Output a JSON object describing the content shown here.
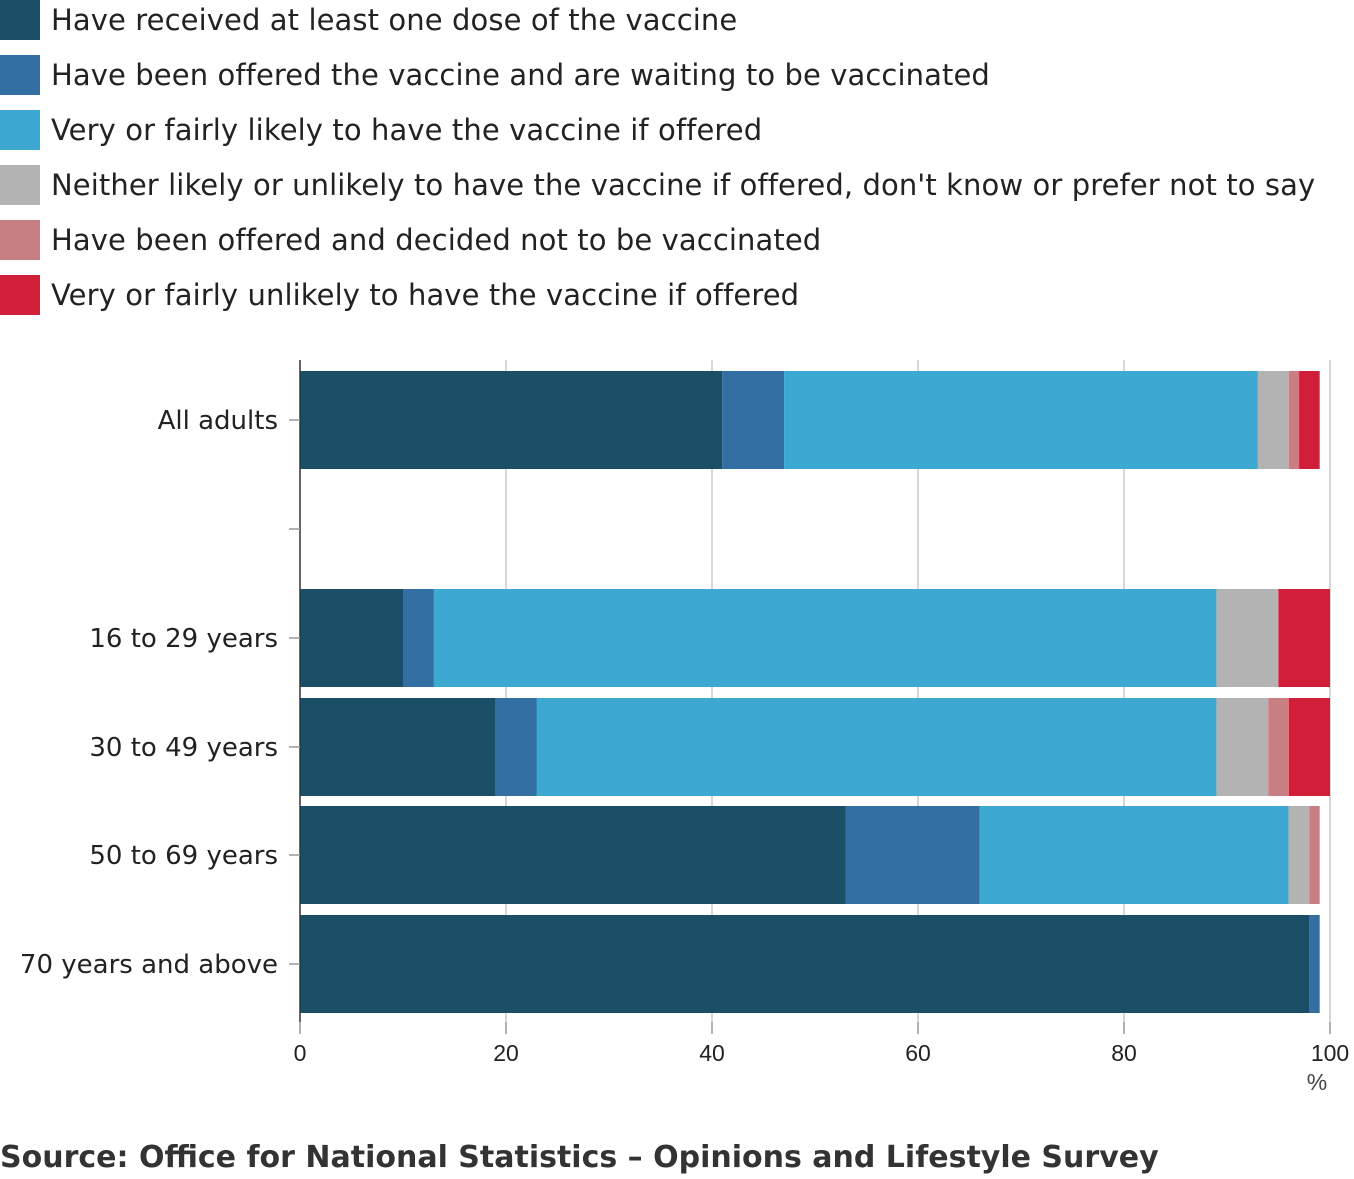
{
  "chart_data": {
    "type": "bar",
    "orientation": "horizontal",
    "stacked": true,
    "categories": [
      "All adults",
      "",
      "16 to 29 years",
      "30 to 49 years",
      "50 to 69 years",
      "70 years and above"
    ],
    "series": [
      {
        "name": "Have received at least one dose of the vaccine",
        "color": "#1b4f68",
        "values": [
          41,
          null,
          10,
          19,
          53,
          98
        ]
      },
      {
        "name": "Have been offered the vaccine and are waiting to be vaccinated",
        "color": "#336fa2",
        "values": [
          6,
          null,
          3,
          4,
          13,
          1
        ]
      },
      {
        "name": "Very or fairly likely to have the vaccine if offered",
        "color": "#3da9d3",
        "values": [
          46,
          null,
          76,
          66,
          30,
          0
        ]
      },
      {
        "name": "Neither likely or unlikely to have the vaccine if offered, don't know or prefer not to say",
        "color": "#b3b3b3",
        "values": [
          3,
          null,
          6,
          5,
          2,
          0
        ]
      },
      {
        "name": "Have been offered and decided not to be vaccinated",
        "color": "#c77f83",
        "values": [
          1,
          null,
          0,
          2,
          1,
          0
        ]
      },
      {
        "name": "Very or fairly unlikely to have the vaccine if offered",
        "color": "#d11f3a",
        "values": [
          2,
          null,
          5,
          4,
          0,
          0
        ]
      }
    ],
    "xlim": [
      0,
      100
    ],
    "xticks": [
      "0",
      "20",
      "40",
      "60",
      "80",
      "100"
    ],
    "xunit": "%",
    "grid": true,
    "legend_position": "top"
  },
  "source": "Source: Office for National Statistics – Opinions and Lifestyle Survey"
}
